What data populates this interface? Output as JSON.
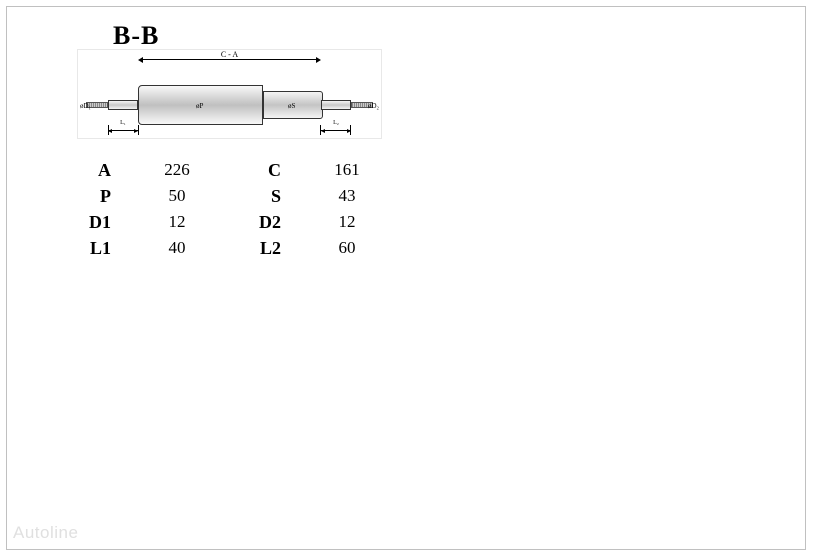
{
  "section_label": "B-B",
  "diagram": {
    "top_dim_label": "C - A",
    "p_label": "øP",
    "s_label": "øS",
    "d1_label": "øD₁",
    "d2_label": "øD₂",
    "l1_label": "L₁",
    "l2_label": "L₂",
    "colors": {
      "outline": "#333333",
      "body_light": "#f8f8f8",
      "body_dark": "#c0c0c0",
      "thread_dark": "#888888",
      "thread_light": "#cccccc",
      "border_box": "#e8e8e8",
      "background": "#ffffff"
    }
  },
  "specs": {
    "rows": [
      {
        "k1": "A",
        "v1": "226",
        "k2": "C",
        "v2": "161"
      },
      {
        "k1": "P",
        "v1": "50",
        "k2": "S",
        "v2": "43"
      },
      {
        "k1": "D1",
        "v1": "12",
        "k2": "D2",
        "v2": "12"
      },
      {
        "k1": "L1",
        "v1": "40",
        "k2": "L2",
        "v2": "60"
      }
    ],
    "label_fontsize": 18,
    "value_fontsize": 17,
    "label_weight": "bold",
    "text_color": "#000000"
  },
  "watermark": "Autoline",
  "frame": {
    "border_color": "#c0c0c0",
    "background": "#ffffff"
  }
}
